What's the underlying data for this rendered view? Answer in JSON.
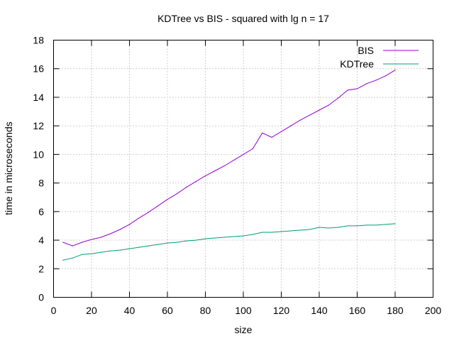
{
  "chart_data": {
    "type": "line",
    "title": "KDTree vs BIS - squared with lg n = 17",
    "xlabel": "size",
    "ylabel": "time in microseconds",
    "xlim": [
      0,
      200
    ],
    "ylim": [
      0,
      18
    ],
    "xticks": [
      0,
      20,
      40,
      60,
      80,
      100,
      120,
      140,
      160,
      180,
      200
    ],
    "yticks": [
      0,
      2,
      4,
      6,
      8,
      10,
      12,
      14,
      16,
      18
    ],
    "grid": true,
    "legend_position": "top-right",
    "series": [
      {
        "name": "BIS",
        "color": "#9400d3",
        "x": [
          5,
          10,
          15,
          20,
          25,
          30,
          35,
          40,
          45,
          50,
          55,
          60,
          65,
          70,
          75,
          80,
          85,
          90,
          95,
          100,
          105,
          110,
          115,
          120,
          125,
          130,
          135,
          140,
          145,
          150,
          155,
          160,
          165,
          170,
          175,
          180
        ],
        "y": [
          3.85,
          3.6,
          3.85,
          4.05,
          4.2,
          4.45,
          4.75,
          5.1,
          5.55,
          5.95,
          6.4,
          6.85,
          7.25,
          7.7,
          8.1,
          8.5,
          8.85,
          9.2,
          9.6,
          10.0,
          10.4,
          11.5,
          11.2,
          11.6,
          12.0,
          12.4,
          12.75,
          13.1,
          13.45,
          13.95,
          14.5,
          14.6,
          14.95,
          15.2,
          15.5,
          15.9
        ]
      },
      {
        "name": "KDTree",
        "color": "#009e73",
        "x": [
          5,
          10,
          15,
          20,
          25,
          30,
          35,
          40,
          45,
          50,
          55,
          60,
          65,
          70,
          75,
          80,
          85,
          90,
          95,
          100,
          105,
          110,
          115,
          120,
          125,
          130,
          135,
          140,
          145,
          150,
          155,
          160,
          165,
          170,
          175,
          180
        ],
        "y": [
          2.6,
          2.75,
          3.0,
          3.05,
          3.15,
          3.25,
          3.3,
          3.4,
          3.5,
          3.6,
          3.7,
          3.8,
          3.85,
          3.95,
          4.0,
          4.1,
          4.15,
          4.2,
          4.25,
          4.3,
          4.4,
          4.55,
          4.55,
          4.6,
          4.65,
          4.7,
          4.75,
          4.9,
          4.85,
          4.9,
          5.0,
          5.0,
          5.05,
          5.05,
          5.1,
          5.15
        ]
      }
    ]
  }
}
